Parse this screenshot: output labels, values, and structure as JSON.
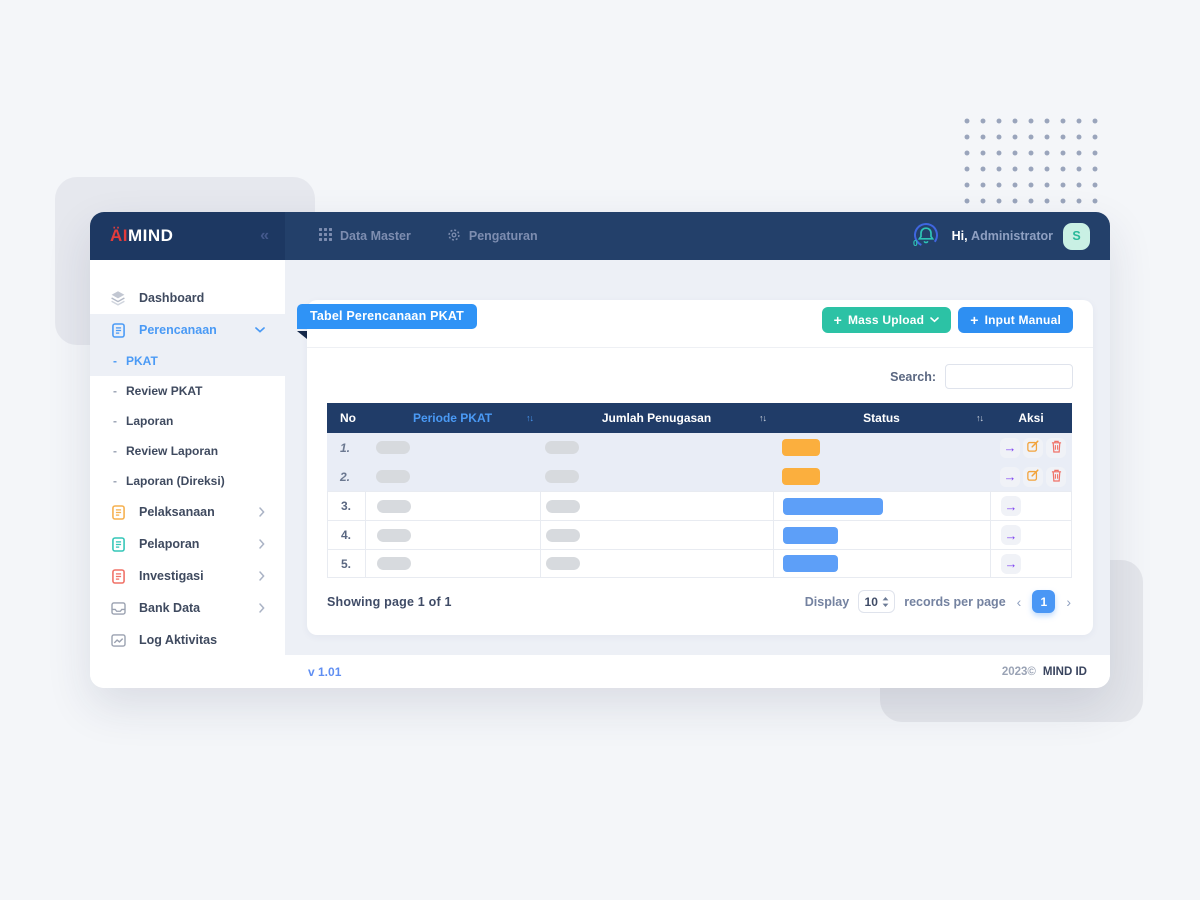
{
  "topbar": {
    "logo_part1": "ÄI",
    "logo_part2": "MIND",
    "nav": [
      {
        "label": "Data Master",
        "icon": "grid-icon"
      },
      {
        "label": "Pengaturan",
        "icon": "gear-icon"
      }
    ],
    "notification_count": "0",
    "greeting_bold": "Hi,",
    "greeting_name": "Administrator",
    "avatar_initial": "S"
  },
  "sidebar": {
    "items": [
      {
        "label": "Dashboard",
        "icon": "layers-icon",
        "type": "parent",
        "chevron": "none",
        "active": false
      },
      {
        "label": "Perencanaan",
        "icon": "doc-icon",
        "icon_color": "#4a9af5",
        "type": "parent",
        "chevron": "down",
        "active": true
      },
      {
        "label": "PKAT",
        "type": "sub",
        "active": true
      },
      {
        "label": "Review PKAT",
        "type": "sub",
        "active": false
      },
      {
        "label": "Laporan",
        "type": "sub",
        "active": false
      },
      {
        "label": "Review Laporan",
        "type": "sub",
        "active": false
      },
      {
        "label": "Laporan (Direksi)",
        "type": "sub",
        "active": false
      },
      {
        "label": "Pelaksanaan",
        "icon": "doc-icon",
        "icon_color": "#f6b04e",
        "type": "parent",
        "chevron": "right",
        "active": false
      },
      {
        "label": "Pelaporan",
        "icon": "doc-icon",
        "icon_color": "#33c6b7",
        "type": "parent",
        "chevron": "right",
        "active": false
      },
      {
        "label": "Investigasi",
        "icon": "doc-icon",
        "icon_color": "#f07167",
        "type": "parent",
        "chevron": "right",
        "active": false
      },
      {
        "label": "Bank Data",
        "icon": "inbox-icon",
        "icon_color": "#9aa1b0",
        "type": "parent",
        "chevron": "right",
        "active": false
      },
      {
        "label": "Log Aktivitas",
        "icon": "chart-icon",
        "icon_color": "#9aa1b0",
        "type": "parent",
        "chevron": "none",
        "active": false
      }
    ]
  },
  "main": {
    "card_title": "Tabel Perencanaan PKAT",
    "mass_upload_label": "Mass Upload",
    "input_manual_label": "Input Manual",
    "search_label": "Search:",
    "table": {
      "columns": [
        {
          "label": "No",
          "sortable": false,
          "highlight": false
        },
        {
          "label": "Periode PKAT",
          "sortable": true,
          "highlight": true
        },
        {
          "label": "Jumlah Penugasan",
          "sortable": true,
          "highlight": false
        },
        {
          "label": "Status",
          "sortable": true,
          "highlight": false
        },
        {
          "label": "Aksi",
          "sortable": false,
          "highlight": false
        }
      ],
      "rows": [
        {
          "no": "1.",
          "highlighted": true,
          "status_color": "#fbaf3e",
          "status_width": 38,
          "actions": [
            "arrow",
            "edit",
            "trash"
          ]
        },
        {
          "no": "2.",
          "highlighted": true,
          "status_color": "#fbaf3e",
          "status_width": 38,
          "actions": [
            "arrow",
            "edit",
            "trash"
          ]
        },
        {
          "no": "3.",
          "highlighted": false,
          "status_color": "#5d9ff8",
          "status_width": 100,
          "actions": [
            "arrow"
          ]
        },
        {
          "no": "4.",
          "highlighted": false,
          "status_color": "#5d9ff8",
          "status_width": 55,
          "actions": [
            "arrow"
          ]
        },
        {
          "no": "5.",
          "highlighted": false,
          "status_color": "#5d9ff8",
          "status_width": 55,
          "actions": [
            "arrow"
          ]
        }
      ]
    },
    "pagination": {
      "showing_text": "Showing page 1 of 1",
      "display_label": "Display",
      "per_page": "10",
      "records_label": "records per page",
      "current_page": "1"
    }
  },
  "footer": {
    "version": "v 1.01",
    "copyright": "2023©",
    "brand": "MIND ID"
  },
  "colors": {
    "accent_blue": "#2e8ff2",
    "accent_teal": "#2cc2a5",
    "status_orange": "#fbaf3e",
    "status_blue": "#5d9ff8",
    "navy": "#203c68"
  }
}
